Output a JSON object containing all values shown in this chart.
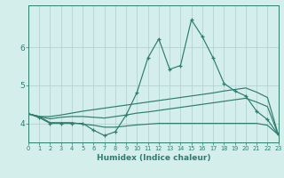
{
  "xlabel": "Humidex (Indice chaleur)",
  "x_values": [
    0,
    1,
    2,
    3,
    4,
    5,
    6,
    7,
    8,
    9,
    10,
    11,
    12,
    13,
    14,
    15,
    16,
    17,
    18,
    19,
    20,
    21,
    22,
    23
  ],
  "line_main": [
    4.25,
    4.15,
    4.0,
    4.0,
    4.0,
    4.0,
    3.82,
    3.68,
    3.78,
    4.22,
    4.82,
    5.72,
    6.22,
    5.42,
    5.52,
    6.72,
    6.28,
    5.72,
    5.05,
    4.85,
    4.72,
    4.32,
    4.1,
    3.7
  ],
  "line_upper": [
    4.25,
    4.18,
    4.18,
    4.22,
    4.27,
    4.32,
    4.36,
    4.4,
    4.44,
    4.48,
    4.52,
    4.56,
    4.6,
    4.64,
    4.68,
    4.72,
    4.76,
    4.8,
    4.85,
    4.89,
    4.93,
    4.82,
    4.68,
    3.7
  ],
  "line_mid": [
    4.25,
    4.18,
    4.12,
    4.16,
    4.18,
    4.18,
    4.16,
    4.14,
    4.18,
    4.22,
    4.27,
    4.3,
    4.34,
    4.38,
    4.42,
    4.46,
    4.5,
    4.54,
    4.58,
    4.62,
    4.66,
    4.56,
    4.44,
    3.7
  ],
  "line_lower": [
    4.25,
    4.18,
    4.02,
    4.02,
    4.02,
    3.98,
    3.95,
    3.9,
    3.9,
    3.93,
    3.96,
    3.98,
    4.0,
    4.0,
    4.0,
    4.0,
    4.0,
    4.0,
    4.0,
    4.0,
    4.0,
    4.0,
    3.95,
    3.7
  ],
  "line_color": "#2e7d6e",
  "bg_color": "#d4eeec",
  "grid_color": "#aecece",
  "yticks": [
    4,
    5,
    6
  ],
  "ylim": [
    3.5,
    7.1
  ],
  "xlim": [
    0,
    23
  ]
}
